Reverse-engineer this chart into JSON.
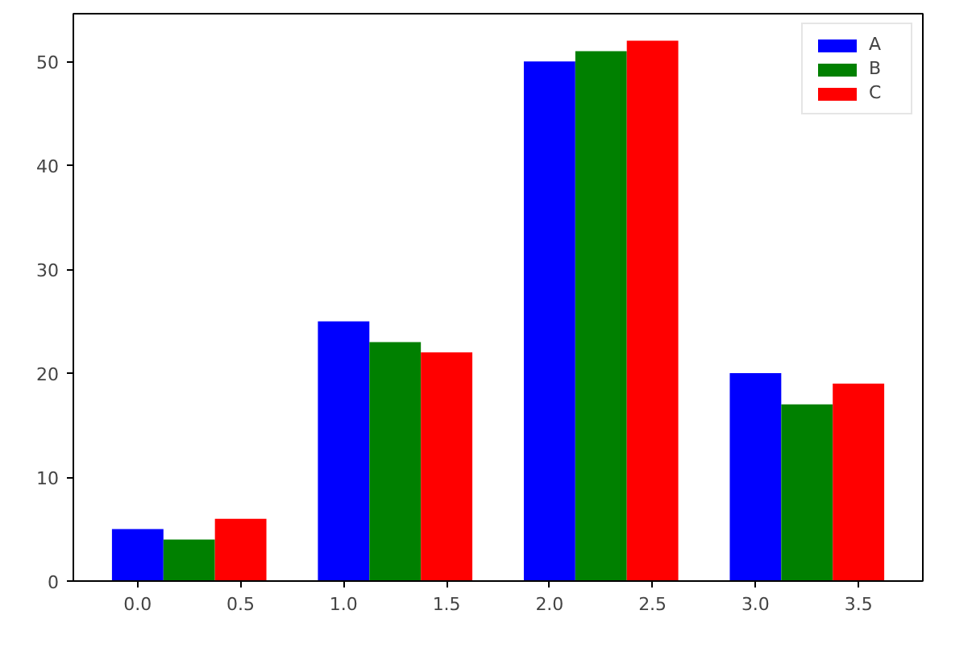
{
  "chart_data": {
    "type": "bar",
    "series": [
      {
        "name": "A",
        "color": "#0000ff",
        "x": [
          0,
          1,
          2,
          3
        ],
        "values": [
          5,
          25,
          50,
          20
        ]
      },
      {
        "name": "B",
        "color": "#008000",
        "x": [
          0.25,
          1.25,
          2.25,
          3.25
        ],
        "values": [
          4,
          23,
          51,
          17
        ]
      },
      {
        "name": "C",
        "color": "#ff0000",
        "x": [
          0.5,
          1.5,
          2.5,
          3.5
        ],
        "values": [
          6,
          22,
          52,
          19
        ]
      }
    ],
    "xlim": [
      -0.3125,
      3.8125
    ],
    "xticks": [
      {
        "value": 0,
        "label": "0.0"
      },
      {
        "value": 0.5,
        "label": "0.5"
      },
      {
        "value": 1,
        "label": "1.0"
      },
      {
        "value": 1.5,
        "label": "1.5"
      },
      {
        "value": 2,
        "label": "2.0"
      },
      {
        "value": 2.5,
        "label": "2.5"
      },
      {
        "value": 3,
        "label": "3.0"
      },
      {
        "value": 3.5,
        "label": "3.5"
      }
    ],
    "ylim": [
      0,
      54.6
    ],
    "yticks": [
      0,
      10,
      20,
      30,
      40,
      50
    ],
    "grid": false,
    "legend": "top right"
  }
}
